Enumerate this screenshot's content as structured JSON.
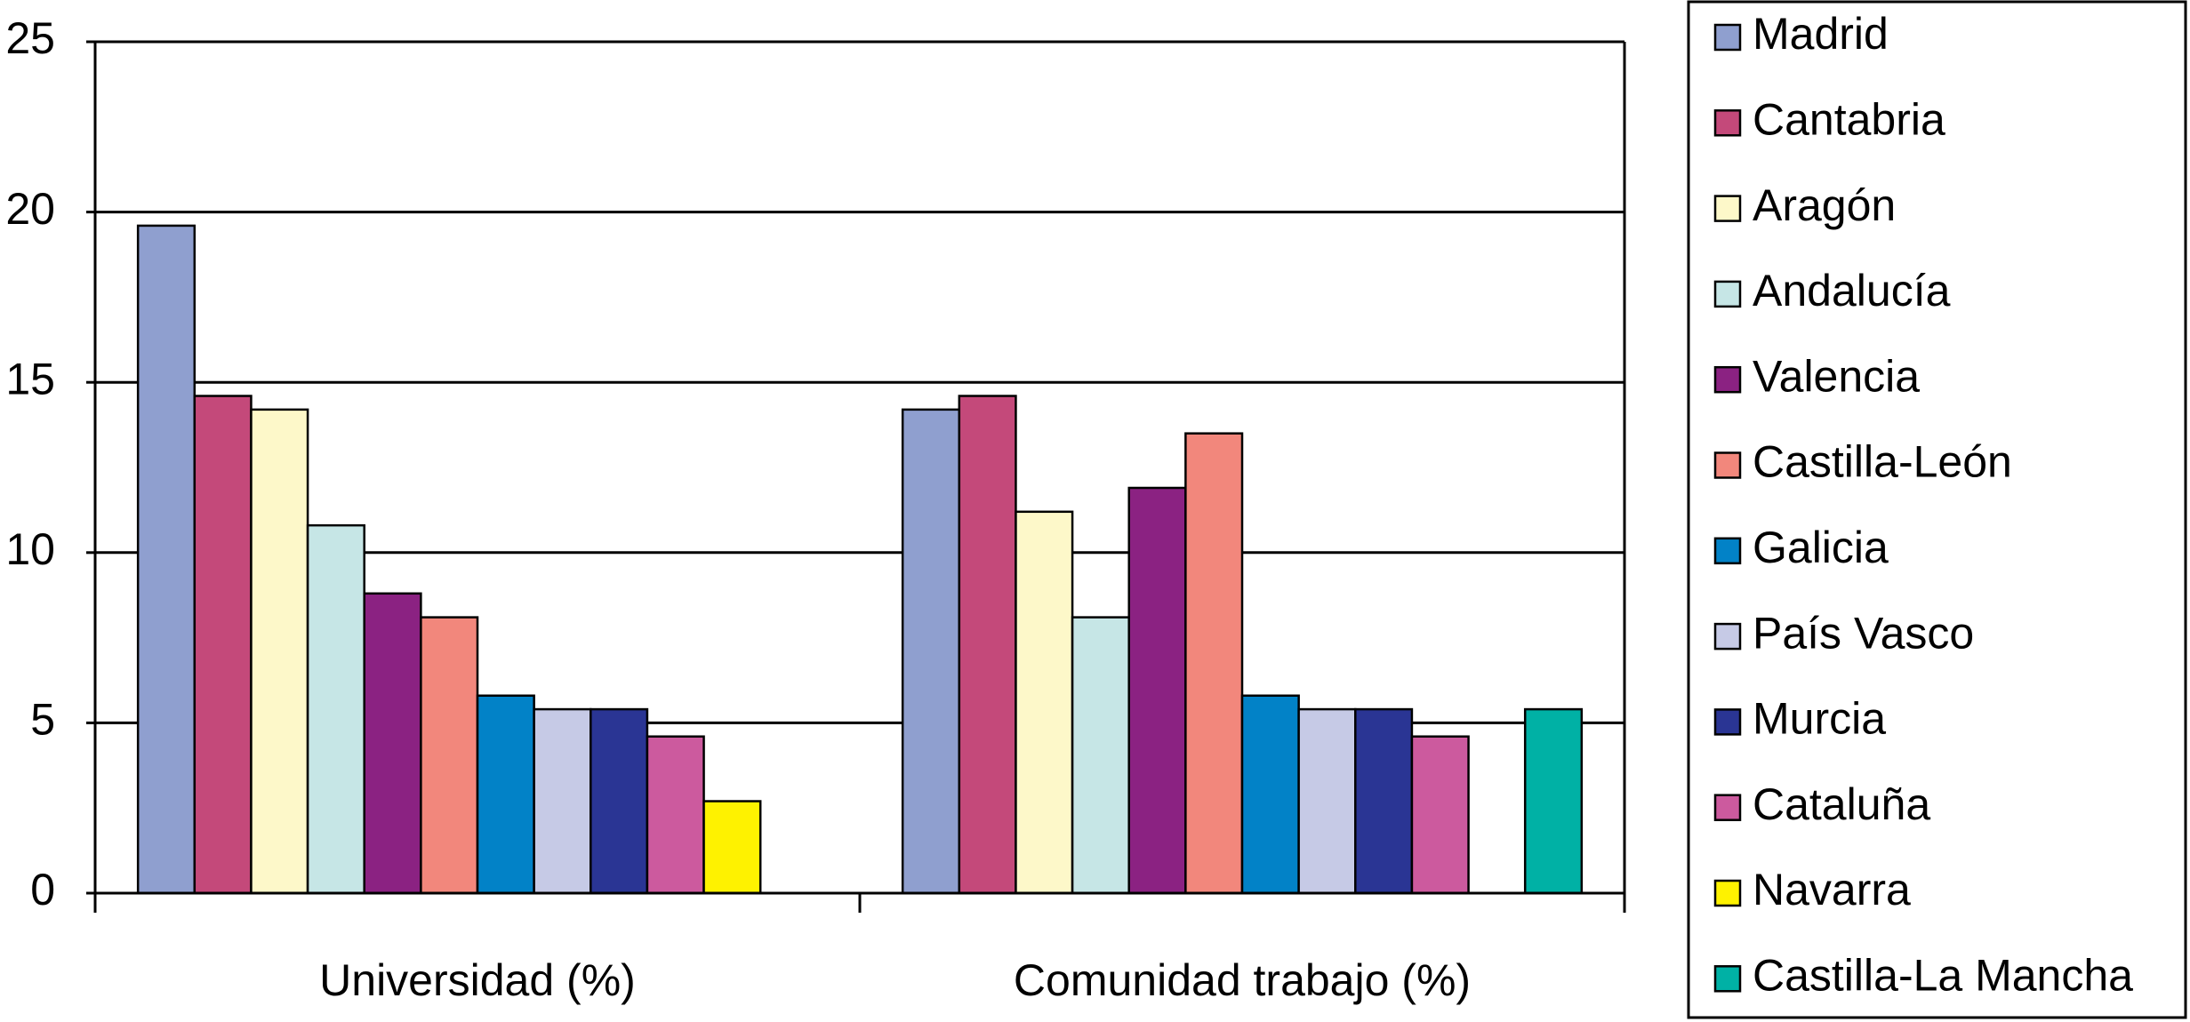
{
  "chart_data": {
    "type": "bar",
    "categories": [
      "Universidad (%)",
      "Comunidad trabajo (%)"
    ],
    "series": [
      {
        "name": "Madrid",
        "color": "#8f9fcf",
        "values": [
          19.6,
          14.2
        ]
      },
      {
        "name": "Cantabria",
        "color": "#c4497a",
        "values": [
          14.6,
          14.6
        ]
      },
      {
        "name": "Aragón",
        "color": "#fdf8c9",
        "values": [
          14.2,
          11.2
        ]
      },
      {
        "name": "Andalucía",
        "color": "#c6e6e6",
        "values": [
          10.8,
          8.1
        ]
      },
      {
        "name": "Valencia",
        "color": "#8b2282",
        "values": [
          8.8,
          11.9
        ]
      },
      {
        "name": "Castilla-León",
        "color": "#f2877c",
        "values": [
          8.1,
          13.5
        ]
      },
      {
        "name": "Galicia",
        "color": "#0282c7",
        "values": [
          5.8,
          5.8
        ]
      },
      {
        "name": "País Vasco",
        "color": "#c6cae6",
        "values": [
          5.4,
          5.4
        ]
      },
      {
        "name": "Murcia",
        "color": "#2a3594",
        "values": [
          5.4,
          5.4
        ]
      },
      {
        "name": "Cataluña",
        "color": "#cc5a9e",
        "values": [
          4.6,
          4.6
        ]
      },
      {
        "name": "Navarra",
        "color": "#fef200",
        "values": [
          2.7,
          null
        ]
      },
      {
        "name": "Castilla-La Mancha",
        "color": "#00b1a5",
        "values": [
          null,
          5.4
        ]
      }
    ],
    "ylim": [
      0,
      25
    ],
    "yticks": [
      0,
      5,
      10,
      15,
      20,
      25
    ],
    "grid": true,
    "legend": "right"
  }
}
